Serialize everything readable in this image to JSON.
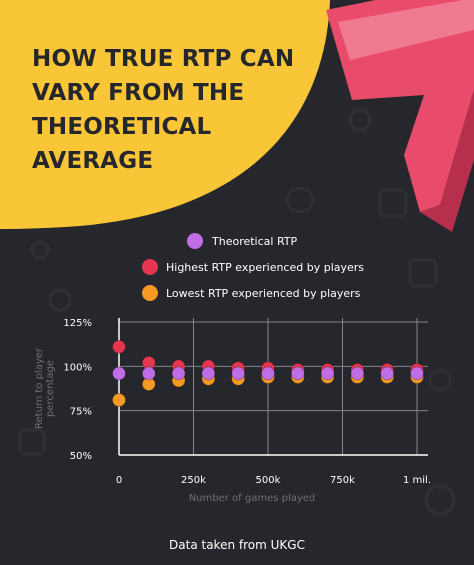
{
  "title": [
    "HOW TRUE RTP CAN",
    "VARY FROM THE",
    "THEORETICAL",
    "AVERAGE"
  ],
  "source": "Data taken from UKGC",
  "colors": {
    "background": "#26272c",
    "title_panel": "#f8c636",
    "seven": "#e94b6a",
    "theoretical": "#c06ee6",
    "highest": "#e5364f",
    "lowest": "#f49a25",
    "axis_text": "#6e6e74",
    "grid": "#85868b"
  },
  "icons": [
    "lucky-seven-icon"
  ],
  "chart_data": {
    "type": "scatter",
    "xlabel": "Number of games played",
    "ylabel": "Return to player percentage",
    "x_ticks": [
      0,
      250000,
      500000,
      750000,
      1000000
    ],
    "x_tick_labels": [
      "0",
      "250k",
      "500k",
      "750k",
      "1 mil."
    ],
    "y_ticks": [
      50,
      75,
      100,
      125
    ],
    "y_tick_labels": [
      "50%",
      "75%",
      "100%",
      "125%"
    ],
    "xlim": [
      0,
      1000000
    ],
    "ylim": [
      50,
      125
    ],
    "grid": true,
    "legend_position": "top",
    "x": [
      0,
      100000,
      200000,
      300000,
      400000,
      500000,
      600000,
      700000,
      800000,
      900000,
      1000000
    ],
    "series": [
      {
        "name": "Theoretical RTP",
        "color": "#c06ee6",
        "values": [
          96,
          96,
          96,
          96,
          96,
          96,
          96,
          96,
          96,
          96,
          96
        ]
      },
      {
        "name": "Highest RTP experienced by players",
        "color": "#e5364f",
        "values": [
          111,
          102,
          100,
          100,
          99,
          99,
          98,
          98,
          98,
          98,
          98
        ]
      },
      {
        "name": "Lowest RTP experienced by players",
        "color": "#f49a25",
        "values": [
          81,
          90,
          92,
          93,
          93,
          94,
          94,
          94,
          94,
          94,
          94
        ]
      }
    ]
  }
}
